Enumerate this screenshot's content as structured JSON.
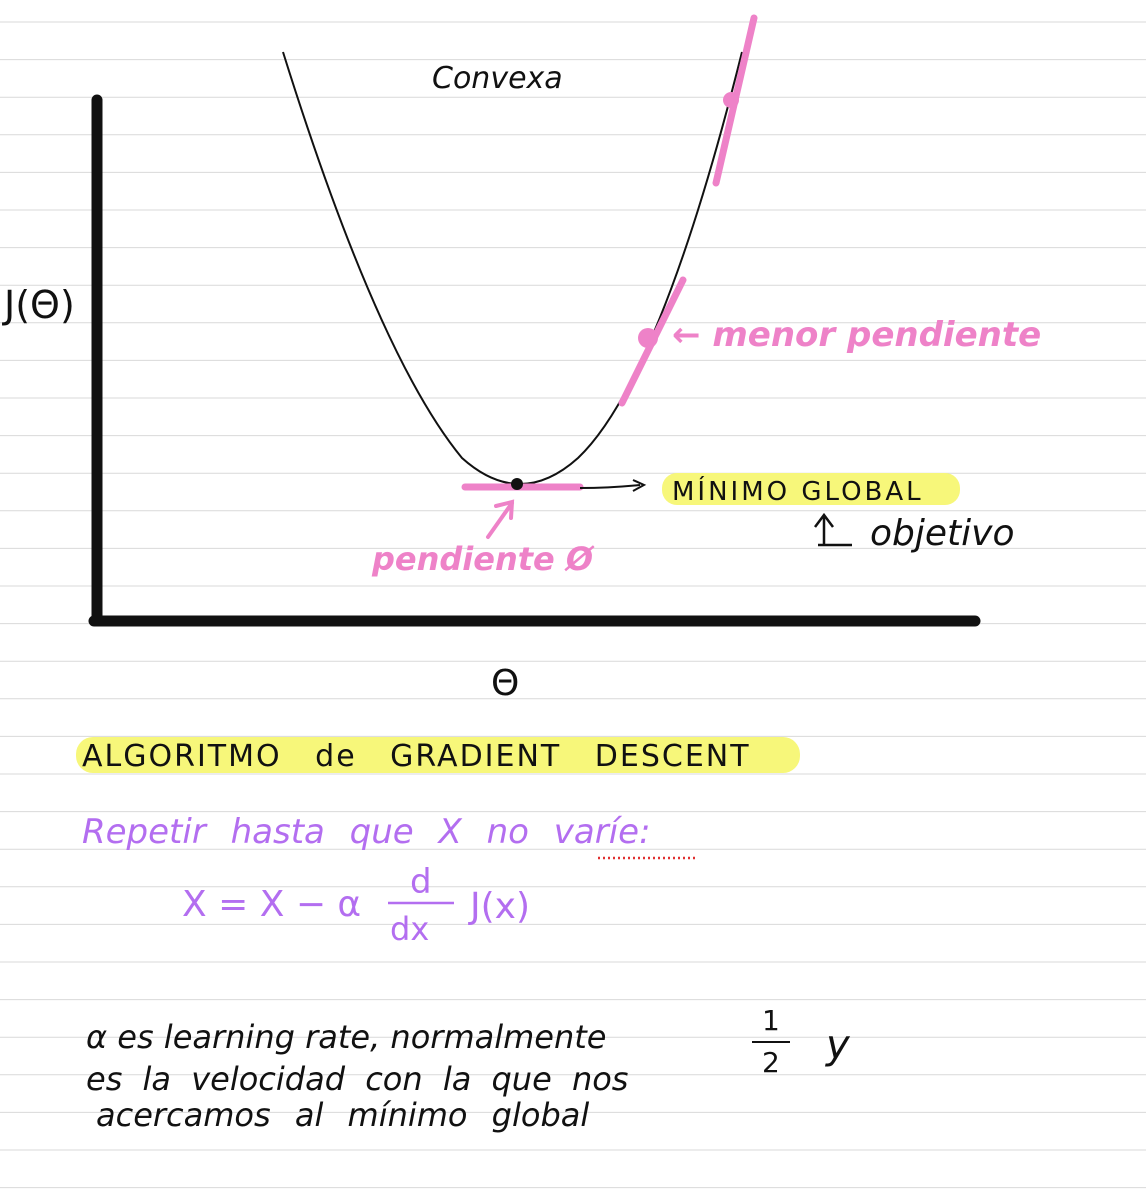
{
  "notes": {
    "curve_label": "Convexa",
    "y_axis_label": "J(Θ)",
    "x_axis_label": "Θ",
    "slope_annotation": "← menor pendiente",
    "minimum_label": "MÍNIMO GLOBAL",
    "objective_label": "objetivo",
    "zero_slope_label": "pendiente Ø",
    "algorithm_title": "ALGORITMO de GRADIENT DESCENT",
    "repeat_line": "Repetir hasta que X no varíe:",
    "formula_lhs": "X = X − α",
    "formula_d": "d",
    "formula_dx": "dx",
    "formula_rhs": "J(x)",
    "explanation_line1": "α es learning rate, normalmente",
    "explanation_frac_num": "1",
    "explanation_frac_den": "2",
    "explanation_y": "y",
    "explanation_line2": "es la velocidad con la que nos",
    "explanation_line3": "acercamos al mínimo global"
  },
  "colors": {
    "ink_black": "#111111",
    "pink": "#ee82c8",
    "purple": "#b36ef0",
    "highlight_yellow": "#f7f77a",
    "ruled_line": "#d9d9d9",
    "dotted_red": "#e03030"
  }
}
